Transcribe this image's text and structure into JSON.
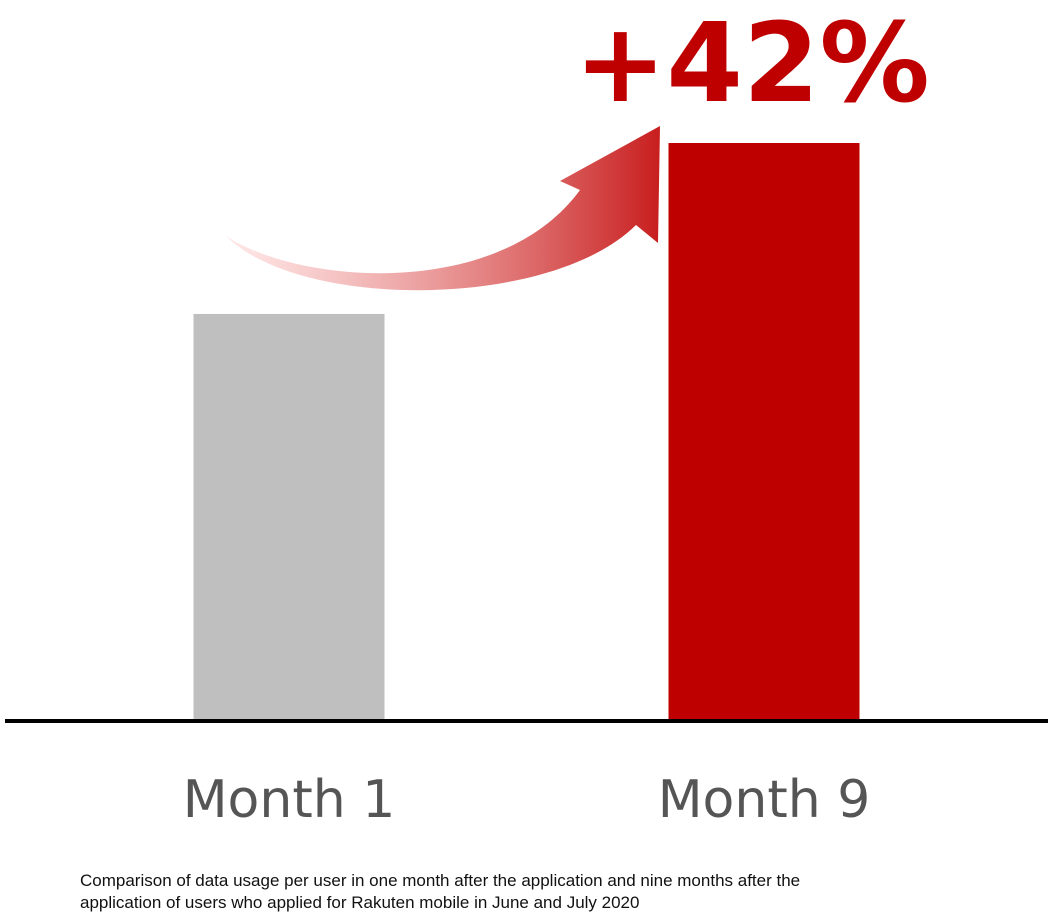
{
  "chart_data": {
    "type": "bar",
    "categories": [
      "Month 1",
      "Month 9"
    ],
    "values": [
      100,
      142
    ],
    "ylim": [
      0,
      142
    ],
    "grid": false,
    "annotation": "+42%",
    "caption_line1": "Comparison of data usage per user in one month after the application and nine months after the",
    "caption_line2": "application of users who applied for Rakuten mobile in June and July 2020"
  },
  "colors": {
    "bar_month1": "#bfbfbf",
    "bar_month9": "#bf0000",
    "annotation": "#bf0000",
    "axis": "#000000",
    "arrow_start": "#ffd9d9",
    "arrow_end": "#c81e1e"
  },
  "icons": {
    "growth_arrow": "curved-arrow-up-right-icon"
  }
}
